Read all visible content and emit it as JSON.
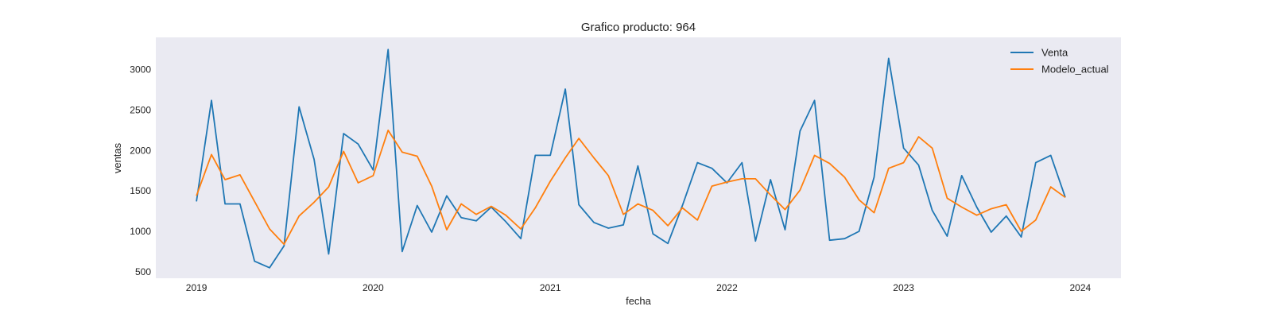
{
  "chart_data": {
    "type": "line",
    "title": "Grafico producto: 964",
    "xlabel": "fecha",
    "ylabel": "ventas",
    "x": [
      "2019-01",
      "2019-02",
      "2019-03",
      "2019-04",
      "2019-05",
      "2019-06",
      "2019-07",
      "2019-08",
      "2019-09",
      "2019-10",
      "2019-11",
      "2019-12",
      "2020-01",
      "2020-02",
      "2020-03",
      "2020-04",
      "2020-05",
      "2020-06",
      "2020-07",
      "2020-08",
      "2020-09",
      "2020-10",
      "2020-11",
      "2020-12",
      "2021-01",
      "2021-02",
      "2021-03",
      "2021-04",
      "2021-05",
      "2021-06",
      "2021-07",
      "2021-08",
      "2021-09",
      "2021-10",
      "2021-11",
      "2021-12",
      "2022-01",
      "2022-02",
      "2022-03",
      "2022-04",
      "2022-05",
      "2022-06",
      "2022-07",
      "2022-08",
      "2022-09",
      "2022-10",
      "2022-11",
      "2022-12",
      "2023-01",
      "2023-02",
      "2023-03",
      "2023-04",
      "2023-05",
      "2023-06",
      "2023-07",
      "2023-08",
      "2023-09",
      "2023-10",
      "2023-11",
      "2023-12"
    ],
    "series": [
      {
        "name": "Venta",
        "color": "#1f77b4",
        "values": [
          1370,
          2620,
          1340,
          1340,
          630,
          550,
          820,
          2540,
          1890,
          720,
          2210,
          2080,
          1760,
          3250,
          750,
          1320,
          990,
          1440,
          1170,
          1130,
          1300,
          1120,
          910,
          1940,
          1940,
          2760,
          1330,
          1110,
          1040,
          1080,
          1810,
          970,
          850,
          1320,
          1850,
          1780,
          1600,
          1850,
          880,
          1640,
          1020,
          2240,
          2620,
          890,
          910,
          1000,
          1670,
          3140,
          2030,
          1820,
          1260,
          940,
          1690,
          1300,
          990,
          1190,
          930,
          1850,
          1940,
          1420
        ]
      },
      {
        "name": "Modelo_actual",
        "color": "#ff7f0e",
        "values": [
          1440,
          1950,
          1640,
          1700,
          1370,
          1030,
          840,
          1190,
          1360,
          1550,
          1990,
          1600,
          1690,
          2250,
          1980,
          1930,
          1560,
          1020,
          1340,
          1210,
          1310,
          1200,
          1030,
          1290,
          1620,
          1910,
          2150,
          1910,
          1690,
          1210,
          1340,
          1260,
          1070,
          1290,
          1140,
          1560,
          1610,
          1650,
          1650,
          1450,
          1270,
          1510,
          1940,
          1840,
          1670,
          1390,
          1230,
          1780,
          1850,
          2170,
          2030,
          1410,
          1300,
          1200,
          1280,
          1330,
          1000,
          1140,
          1550,
          1420
        ]
      }
    ],
    "xticks": [
      "2019",
      "2020",
      "2021",
      "2022",
      "2023",
      "2024"
    ],
    "yticks": [
      500,
      1000,
      1500,
      2000,
      2500,
      3000
    ],
    "ylim": [
      420,
      3400
    ],
    "xlim": [
      "2018-10-09",
      "2024-03-25"
    ],
    "grid": false,
    "legend": "top-right",
    "background": "#eaeaf2"
  }
}
